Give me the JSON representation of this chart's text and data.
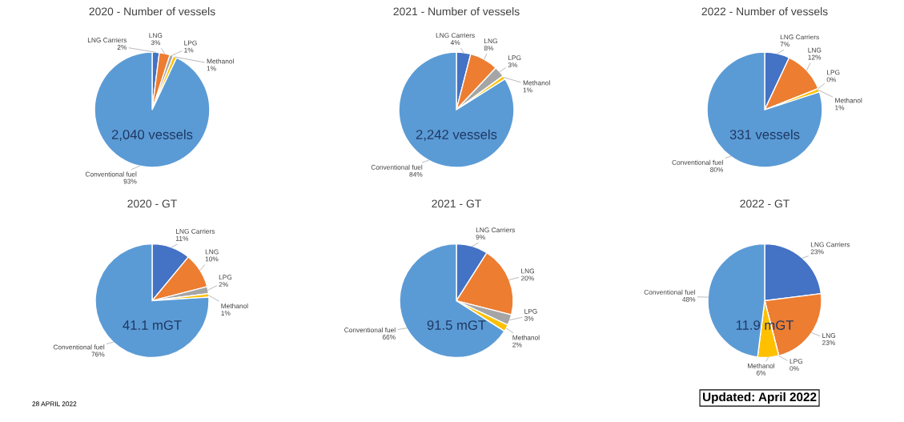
{
  "chart_data": [
    {
      "type": "pie",
      "title": "2020 - Number of vessels",
      "categories": [
        "LNG Carriers",
        "LNG",
        "LPG",
        "Methanol",
        "Conventional fuel"
      ],
      "values": [
        2,
        3,
        1,
        1,
        93
      ],
      "value_labels": [
        "2%",
        "3%",
        "1%",
        "1%",
        "93%"
      ],
      "colors": [
        "#4472c4",
        "#ed7d31",
        "#a5a5a5",
        "#ffc000",
        "#5b9bd5"
      ],
      "annotations": [
        "2,040 vessels",
        "28 APRIL 2022"
      ]
    },
    {
      "type": "pie",
      "title": "2021 - Number of vessels",
      "categories": [
        "LNG Carriers",
        "LNG",
        "LPG",
        "Methanol",
        "Conventional fuel"
      ],
      "values": [
        4,
        8,
        3,
        1,
        84
      ],
      "value_labels": [
        "4%",
        "8%",
        "3%",
        "1%",
        "84%"
      ],
      "colors": [
        "#4472c4",
        "#ed7d31",
        "#a5a5a5",
        "#ffc000",
        "#5b9bd5"
      ],
      "annotations": [
        "2,242 vessels"
      ]
    },
    {
      "type": "pie",
      "title": "2022 - Number of vessels",
      "categories": [
        "LNG Carriers",
        "LNG",
        "LPG",
        "Methanol",
        "Conventional fuel"
      ],
      "values": [
        7,
        12,
        0,
        1,
        80
      ],
      "value_labels": [
        "7%",
        "12%",
        "0%",
        "1%",
        "80%"
      ],
      "colors": [
        "#4472c4",
        "#ed7d31",
        "#a5a5a5",
        "#ffc000",
        "#5b9bd5"
      ],
      "annotations": [
        "331 vessels"
      ]
    },
    {
      "type": "pie",
      "title": "2020 - GT",
      "categories": [
        "LNG Carriers",
        "LNG",
        "LPG",
        "Methanol",
        "Conventional fuel"
      ],
      "values": [
        11,
        10,
        2,
        1,
        76
      ],
      "value_labels": [
        "11%",
        "10%",
        "2%",
        "1%",
        "76%"
      ],
      "colors": [
        "#4472c4",
        "#ed7d31",
        "#a5a5a5",
        "#ffc000",
        "#5b9bd5"
      ],
      "annotations": [
        "41.1 mGT"
      ]
    },
    {
      "type": "pie",
      "title": "2021 - GT",
      "categories": [
        "LNG Carriers",
        "LNG",
        "LPG",
        "Methanol",
        "Conventional fuel"
      ],
      "values": [
        9,
        20,
        3,
        2,
        66
      ],
      "value_labels": [
        "9%",
        "20%",
        "3%",
        "2%",
        "66%"
      ],
      "colors": [
        "#4472c4",
        "#ed7d31",
        "#a5a5a5",
        "#ffc000",
        "#5b9bd5"
      ],
      "annotations": [
        "91.5 mGT"
      ]
    },
    {
      "type": "pie",
      "title": "2022 - GT",
      "categories": [
        "LNG Carriers",
        "LNG",
        "LPG",
        "Methanol",
        "Conventional fuel"
      ],
      "values": [
        23,
        23,
        0,
        6,
        48
      ],
      "value_labels": [
        "23%",
        "23%",
        "0%",
        "6%",
        "48%"
      ],
      "colors": [
        "#4472c4",
        "#ed7d31",
        "#a5a5a5",
        "#ffc000",
        "#5b9bd5"
      ],
      "annotations": [
        "11.9 mGT",
        "Updated: April 2022"
      ]
    }
  ]
}
